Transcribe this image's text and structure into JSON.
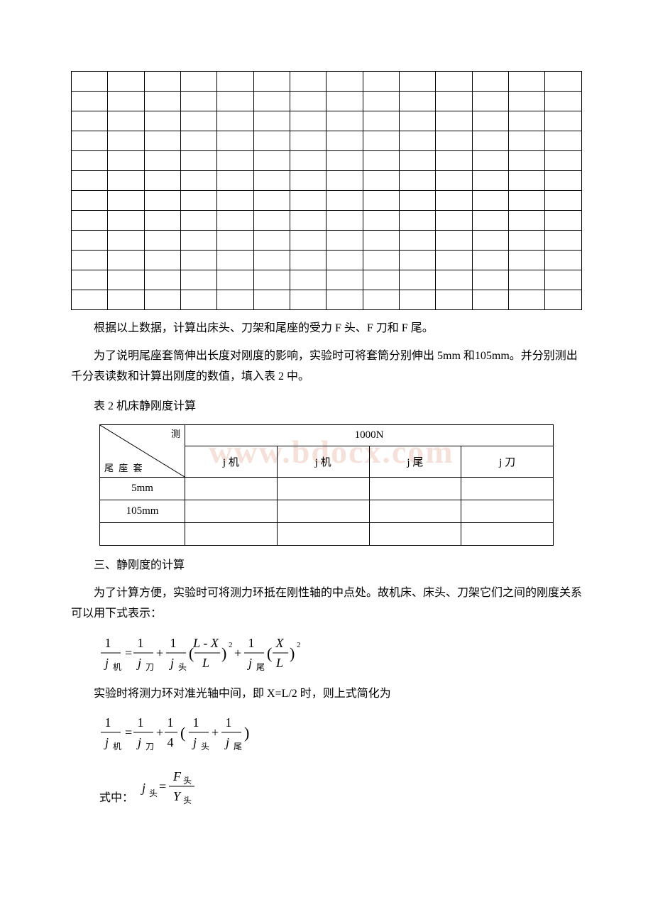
{
  "table1": {
    "cols": 14,
    "rows": 12
  },
  "p1": "根据以上数据，计算出床头、刀架和尾座的受力 F 头、F 刀和 F 尾。",
  "p2": "为了说明尾座套筒伸出长度对刚度的影响，实验时可将套筒分别伸出 5mm 和105mm。并分别测出千分表读数和计算出刚度的数值，填入表 2 中。",
  "t2caption": "表 2 机床静刚度计算",
  "table2": {
    "diag_top": "测",
    "diag_bot": "尾 座 套 ",
    "header_top_span": "1000N",
    "headers": [
      "j 机",
      "j 机",
      "j 尾",
      "j 刀"
    ],
    "rows": [
      "5mm",
      "105mm",
      ""
    ]
  },
  "section3": "三、静刚度的计算",
  "p3": "为了计算方便，实验时可将测力环抵在刚性轴的中点处。故机床、床头、刀架它们之间的刚度关系可以用下式表示：",
  "p4": "实验时将测力环对准光轴中间，即 X=L/2 时，则上式简化为",
  "label_shizhong": "式中：",
  "watermark": "www.bdocx.com",
  "formula1": {
    "terms": [
      "j",
      "机",
      "j",
      "刀",
      "j",
      "头",
      "L",
      "X",
      "j",
      "尾",
      "X",
      "L"
    ]
  },
  "formula3": {
    "lhs_sub": "头",
    "num_var": "F",
    "num_sub": "头",
    "den_var": "Y",
    "den_sub": "头"
  }
}
